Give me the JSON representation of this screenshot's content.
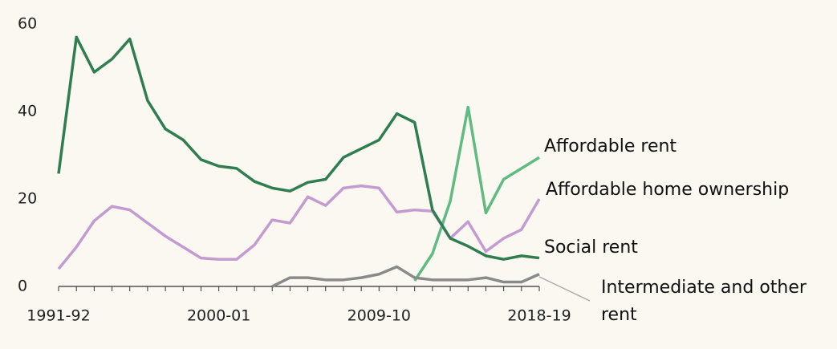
{
  "chart_data": {
    "type": "line",
    "categories": [
      "1991-92",
      null,
      null,
      null,
      null,
      null,
      null,
      null,
      null,
      "2000-01",
      null,
      null,
      null,
      null,
      null,
      null,
      null,
      null,
      "2009-10",
      null,
      null,
      null,
      null,
      null,
      null,
      null,
      null,
      "2018-19"
    ],
    "ylim": [
      0,
      60
    ],
    "yticks": [
      0,
      20,
      40,
      60
    ],
    "series": [
      {
        "name": "Affordable rent",
        "color": "#5fbb80",
        "values": [
          null,
          null,
          null,
          null,
          null,
          null,
          null,
          null,
          null,
          null,
          null,
          null,
          null,
          null,
          null,
          null,
          null,
          null,
          null,
          null,
          1.3,
          7.5,
          19.5,
          41,
          16.8,
          24.5,
          27,
          29.5
        ]
      },
      {
        "name": "Affordable home ownership",
        "color": "#c49bd0",
        "values": [
          4,
          9,
          15,
          18.3,
          17.5,
          14.5,
          11.5,
          9,
          6.5,
          6.2,
          6.2,
          9.5,
          15.2,
          14.5,
          20.5,
          18.5,
          22.5,
          23,
          22.5,
          17,
          17.5,
          17.2,
          11,
          14.8,
          8,
          11,
          13,
          20
        ]
      },
      {
        "name": "Social rent",
        "color": "#2f7d50",
        "values": [
          25.8,
          57,
          49,
          52,
          56.6,
          42.5,
          36,
          33.5,
          29,
          27.5,
          27,
          24,
          22.5,
          21.8,
          23.8,
          24.5,
          29.5,
          31.5,
          33.5,
          39.5,
          37.5,
          17.5,
          11,
          9.2,
          7,
          6.2,
          7,
          6.5
        ]
      },
      {
        "name": "Intermediate and other rent",
        "color": "#8a8a8a",
        "values": [
          null,
          null,
          null,
          null,
          null,
          null,
          null,
          null,
          null,
          null,
          null,
          null,
          0,
          2,
          2,
          1.5,
          1.5,
          2,
          2.8,
          4.5,
          2,
          1.5,
          1.5,
          1.5,
          2,
          1,
          1,
          2.8
        ]
      }
    ]
  }
}
